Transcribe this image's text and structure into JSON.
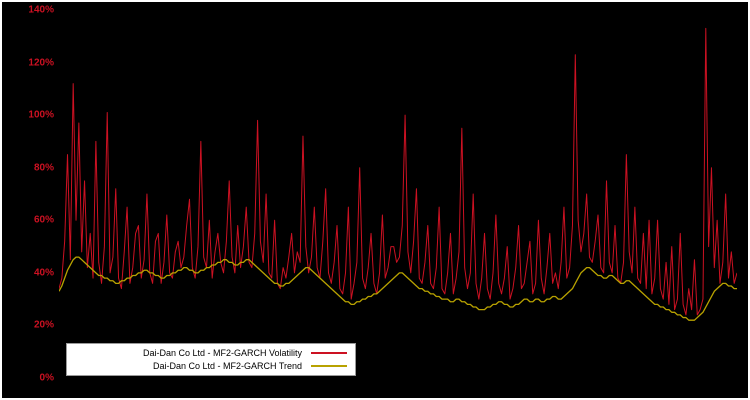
{
  "colors": {
    "background": "#000000",
    "frame": "#ffffff",
    "tick_label": "#cc1122",
    "legend_background": "#ffffff",
    "legend_border": "#9a9a9a",
    "legend_text": "#000000"
  },
  "chart_data": {
    "type": "line",
    "title": "",
    "xlabel": "",
    "ylabel": "",
    "ylim": [
      0,
      140
    ],
    "grid": false,
    "legend_position": "bottom-left",
    "y_ticks": [
      {
        "label": "0%",
        "value": 0
      },
      {
        "label": "20%",
        "value": 20
      },
      {
        "label": "40%",
        "value": 40
      },
      {
        "label": "60%",
        "value": 60
      },
      {
        "label": "80%",
        "value": 80
      },
      {
        "label": "100%",
        "value": 100
      },
      {
        "label": "120%",
        "value": 120
      },
      {
        "label": "140%",
        "value": 140
      }
    ],
    "series": [
      {
        "name": "Dai-Dan Co Ltd - MF2-GARCH Volatility",
        "color": "#cc1122",
        "stroke_width": 1,
        "values": [
          34,
          38,
          52,
          85,
          45,
          112,
          60,
          97,
          48,
          75,
          42,
          55,
          38,
          90,
          44,
          36,
          50,
          101,
          40,
          46,
          72,
          38,
          34,
          48,
          65,
          36,
          42,
          55,
          58,
          38,
          45,
          70,
          40,
          36,
          52,
          55,
          36,
          44,
          62,
          40,
          38,
          48,
          52,
          42,
          46,
          58,
          68,
          42,
          38,
          50,
          90,
          46,
          42,
          60,
          38,
          48,
          55,
          44,
          40,
          52,
          75,
          46,
          40,
          58,
          42,
          50,
          65,
          44,
          42,
          55,
          98,
          52,
          44,
          70,
          40,
          38,
          60,
          36,
          34,
          42,
          38,
          46,
          55,
          40,
          48,
          44,
          92,
          50,
          40,
          46,
          65,
          42,
          38,
          52,
          72,
          40,
          36,
          44,
          58,
          34,
          32,
          40,
          65,
          30,
          36,
          44,
          80,
          38,
          34,
          42,
          55,
          36,
          32,
          40,
          62,
          38,
          42,
          50,
          50,
          44,
          46,
          58,
          100,
          48,
          40,
          52,
          72,
          38,
          36,
          44,
          58,
          36,
          34,
          42,
          65,
          34,
          32,
          40,
          55,
          32,
          38,
          48,
          95,
          42,
          34,
          40,
          70,
          36,
          30,
          38,
          55,
          34,
          30,
          40,
          62,
          36,
          32,
          38,
          50,
          30,
          34,
          42,
          58,
          34,
          36,
          44,
          52,
          32,
          36,
          60,
          38,
          32,
          42,
          55,
          36,
          40,
          34,
          44,
          65,
          38,
          42,
          58,
          123,
          60,
          48,
          55,
          70,
          46,
          44,
          52,
          62,
          42,
          40,
          75,
          44,
          40,
          58,
          38,
          36,
          44,
          85,
          48,
          40,
          65,
          38,
          36,
          55,
          34,
          60,
          32,
          38,
          60,
          34,
          30,
          44,
          28,
          50,
          26,
          30,
          55,
          28,
          24,
          34,
          26,
          45,
          24,
          26,
          30,
          133,
          50,
          80,
          42,
          60,
          36,
          44,
          70,
          38,
          48,
          36,
          40
        ]
      },
      {
        "name": "Dai-Dan Co Ltd - MF2-GARCH Trend",
        "color": "#b8a200",
        "stroke_width": 1.3,
        "values": [
          33,
          35,
          38,
          41,
          43,
          45,
          46,
          46,
          45,
          44,
          43,
          42,
          41,
          40,
          39,
          39,
          38,
          38,
          37,
          37,
          36,
          36,
          37,
          37,
          38,
          38,
          39,
          39,
          40,
          40,
          41,
          41,
          40,
          40,
          39,
          39,
          38,
          38,
          39,
          39,
          40,
          40,
          41,
          41,
          42,
          42,
          41,
          41,
          40,
          40,
          41,
          41,
          42,
          42,
          43,
          43,
          44,
          44,
          45,
          45,
          44,
          44,
          43,
          43,
          44,
          44,
          45,
          45,
          44,
          43,
          42,
          41,
          40,
          39,
          38,
          37,
          36,
          36,
          35,
          35,
          36,
          36,
          37,
          38,
          39,
          40,
          41,
          42,
          42,
          41,
          40,
          39,
          38,
          37,
          36,
          35,
          34,
          33,
          32,
          31,
          30,
          29,
          29,
          28,
          28,
          29,
          29,
          30,
          30,
          31,
          31,
          32,
          32,
          33,
          34,
          35,
          36,
          37,
          38,
          39,
          40,
          40,
          39,
          38,
          37,
          36,
          35,
          34,
          34,
          33,
          33,
          32,
          32,
          31,
          31,
          30,
          30,
          30,
          29,
          29,
          30,
          30,
          29,
          29,
          28,
          28,
          27,
          27,
          26,
          26,
          26,
          27,
          27,
          28,
          28,
          29,
          29,
          28,
          28,
          27,
          27,
          28,
          28,
          29,
          30,
          30,
          29,
          29,
          30,
          30,
          29,
          29,
          30,
          30,
          31,
          31,
          30,
          30,
          31,
          32,
          33,
          34,
          36,
          38,
          40,
          41,
          42,
          42,
          41,
          40,
          39,
          39,
          38,
          38,
          39,
          39,
          38,
          37,
          36,
          36,
          37,
          37,
          36,
          35,
          34,
          33,
          32,
          31,
          30,
          29,
          28,
          28,
          27,
          27,
          26,
          26,
          25,
          25,
          24,
          24,
          23,
          23,
          22,
          22,
          22,
          23,
          24,
          25,
          27,
          29,
          31,
          33,
          34,
          35,
          36,
          36,
          35,
          35,
          34,
          34
        ]
      }
    ]
  }
}
